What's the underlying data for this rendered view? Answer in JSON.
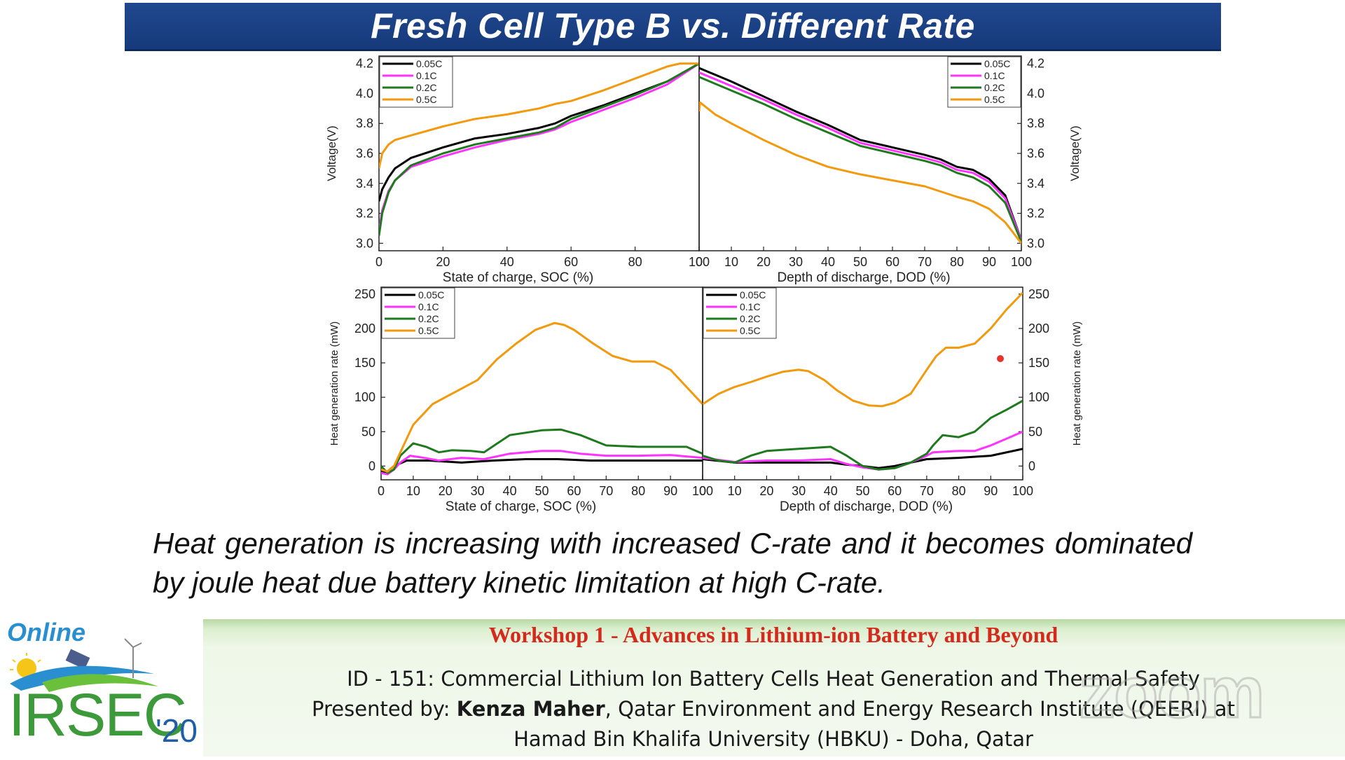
{
  "slide": {
    "title": "Fresh Cell Type B vs. Different Rate",
    "caption": "Heat  generation is increasing with increased C-rate and it becomes dominated by joule heat due battery kinetic limitation at high C-rate."
  },
  "footer": {
    "workshop": "Workshop 1 - Advances in Lithium-ion Battery and Beyond",
    "talk_id": "ID - 151: Commercial Lithium Ion Battery Cells Heat Generation and Thermal Safety",
    "presented_by_label": "Presented by: ",
    "presenter": "Kenza Maher",
    "affiliation_1": ", Qatar Environment and Energy Research Institute (QEERI) at",
    "affiliation_2": "Hamad Bin Khalifa University (HBKU) - Doha, Qatar",
    "watermark": "zoom"
  },
  "logo": {
    "online": "Online",
    "name": "IRSEC",
    "year": "'20"
  },
  "colors": {
    "title_bg": "#1b4186",
    "c005": "#000000",
    "c01": "#ff33ff",
    "c02": "#1f7a1f",
    "c05": "#f2990d",
    "workshop_red": "#d42a1d"
  },
  "chart_data": [
    {
      "type": "line",
      "panel": "charge-voltage",
      "xlabel": "State of charge, SOC (%)",
      "ylabel": "Voltage(V)",
      "xlim": [
        0,
        100
      ],
      "ylim": [
        2.95,
        4.25
      ],
      "xticks": [
        0,
        20,
        40,
        60,
        80,
        100
      ],
      "yticks": [
        3.0,
        3.2,
        3.4,
        3.6,
        3.8,
        4.0,
        4.2
      ],
      "ytick_labels": [
        "3.0",
        "3.2",
        "3.4",
        "3.6",
        "3.8",
        "4.0",
        "4.2"
      ],
      "legend": "top-left",
      "series": [
        {
          "name": "0.05C",
          "x": [
            0,
            1,
            3,
            5,
            10,
            20,
            30,
            40,
            50,
            55,
            60,
            70,
            80,
            90,
            100
          ],
          "y": [
            3.28,
            3.36,
            3.44,
            3.5,
            3.57,
            3.64,
            3.7,
            3.73,
            3.77,
            3.8,
            3.85,
            3.92,
            4.0,
            4.08,
            4.2
          ]
        },
        {
          "name": "0.1C",
          "x": [
            0,
            1,
            3,
            5,
            10,
            20,
            30,
            40,
            50,
            55,
            60,
            70,
            80,
            90,
            100
          ],
          "y": [
            3.08,
            3.22,
            3.35,
            3.42,
            3.51,
            3.58,
            3.64,
            3.69,
            3.73,
            3.76,
            3.81,
            3.89,
            3.97,
            4.06,
            4.2
          ]
        },
        {
          "name": "0.2C",
          "x": [
            0,
            1,
            3,
            5,
            10,
            20,
            30,
            40,
            50,
            55,
            60,
            70,
            80,
            90,
            100
          ],
          "y": [
            3.05,
            3.2,
            3.34,
            3.42,
            3.52,
            3.6,
            3.66,
            3.7,
            3.74,
            3.77,
            3.83,
            3.91,
            3.99,
            4.08,
            4.2
          ]
        },
        {
          "name": "0.5C",
          "x": [
            0,
            1,
            3,
            5,
            10,
            20,
            30,
            40,
            50,
            55,
            60,
            70,
            80,
            90,
            94,
            100
          ],
          "y": [
            3.5,
            3.6,
            3.66,
            3.69,
            3.72,
            3.78,
            3.83,
            3.86,
            3.9,
            3.93,
            3.95,
            4.02,
            4.1,
            4.18,
            4.2,
            4.2
          ]
        }
      ]
    },
    {
      "type": "line",
      "panel": "discharge-voltage",
      "xlabel": "Depth of discharge, DOD (%)",
      "ylabel": "Voltage(V)",
      "xlim": [
        0,
        100
      ],
      "ylim": [
        2.95,
        4.25
      ],
      "xticks": [
        0,
        10,
        20,
        30,
        40,
        50,
        60,
        70,
        80,
        90,
        100
      ],
      "yticks": [
        3.0,
        3.2,
        3.4,
        3.6,
        3.8,
        4.0,
        4.2
      ],
      "ytick_labels": [
        "3.0",
        "3.2",
        "3.4",
        "3.6",
        "3.8",
        "4.0",
        "4.2"
      ],
      "legend": "top-right",
      "series": [
        {
          "name": "0.05C",
          "x": [
            0,
            10,
            20,
            30,
            40,
            50,
            60,
            70,
            75,
            80,
            85,
            90,
            95,
            100
          ],
          "y": [
            4.17,
            4.08,
            3.98,
            3.88,
            3.79,
            3.69,
            3.64,
            3.59,
            3.56,
            3.51,
            3.49,
            3.43,
            3.32,
            3.02
          ]
        },
        {
          "name": "0.1C",
          "x": [
            0,
            10,
            20,
            30,
            40,
            50,
            60,
            70,
            75,
            80,
            85,
            90,
            95,
            100
          ],
          "y": [
            4.14,
            4.05,
            3.96,
            3.86,
            3.77,
            3.67,
            3.62,
            3.57,
            3.54,
            3.49,
            3.47,
            3.41,
            3.3,
            3.02
          ]
        },
        {
          "name": "0.2C",
          "x": [
            0,
            10,
            20,
            30,
            40,
            50,
            60,
            70,
            75,
            80,
            85,
            90,
            95,
            100
          ],
          "y": [
            4.11,
            4.02,
            3.93,
            3.83,
            3.74,
            3.65,
            3.6,
            3.55,
            3.52,
            3.47,
            3.44,
            3.38,
            3.27,
            3.01
          ]
        },
        {
          "name": "0.5C",
          "x": [
            0,
            0.3,
            5,
            10,
            20,
            30,
            40,
            50,
            60,
            70,
            80,
            85,
            90,
            95,
            100
          ],
          "y": [
            3.88,
            3.94,
            3.86,
            3.8,
            3.69,
            3.59,
            3.51,
            3.46,
            3.42,
            3.38,
            3.31,
            3.28,
            3.23,
            3.14,
            3.0
          ]
        }
      ]
    },
    {
      "type": "line",
      "panel": "charge-heat",
      "xlabel": "State of charge, SOC (%)",
      "ylabel": "Heat generation rate (mW)",
      "xlim": [
        0,
        100
      ],
      "ylim": [
        -20,
        260
      ],
      "xticks": [
        0,
        10,
        20,
        30,
        40,
        50,
        60,
        70,
        80,
        90,
        100
      ],
      "yticks": [
        0,
        50,
        100,
        150,
        200,
        250
      ],
      "legend": "top-left",
      "series": [
        {
          "name": "0.05C",
          "x": [
            0,
            1,
            2,
            4,
            8,
            15,
            25,
            35,
            45,
            55,
            65,
            75,
            85,
            95,
            100
          ],
          "y": [
            -5,
            -10,
            -8,
            0,
            8,
            8,
            5,
            8,
            10,
            10,
            8,
            8,
            8,
            8,
            8
          ]
        },
        {
          "name": "0.1C",
          "x": [
            0,
            2,
            4,
            6,
            9,
            12,
            18,
            25,
            32,
            40,
            50,
            56,
            62,
            70,
            80,
            90,
            95,
            100
          ],
          "y": [
            -10,
            -12,
            -5,
            5,
            15,
            13,
            8,
            12,
            10,
            18,
            22,
            22,
            18,
            15,
            15,
            16,
            14,
            12
          ]
        },
        {
          "name": "0.2C",
          "x": [
            0,
            2,
            4,
            6,
            10,
            14,
            18,
            22,
            28,
            32,
            40,
            50,
            56,
            62,
            70,
            80,
            90,
            95,
            100
          ],
          "y": [
            0,
            -10,
            -5,
            15,
            33,
            28,
            20,
            23,
            22,
            20,
            45,
            52,
            53,
            45,
            30,
            28,
            28,
            28,
            18
          ]
        },
        {
          "name": "0.5C",
          "x": [
            0,
            2,
            4,
            7,
            10,
            13,
            16,
            20,
            26,
            30,
            36,
            42,
            48,
            54,
            57,
            60,
            66,
            72,
            78,
            85,
            90,
            95,
            100
          ],
          "y": [
            -5,
            -8,
            0,
            30,
            60,
            75,
            90,
            100,
            115,
            125,
            155,
            178,
            198,
            208,
            205,
            198,
            178,
            160,
            152,
            152,
            140,
            115,
            90
          ]
        }
      ]
    },
    {
      "type": "line",
      "panel": "discharge-heat",
      "xlabel": "Depth of discharge, DOD (%)",
      "ylabel": "Heat generation rate (mW)",
      "xlim": [
        0,
        100
      ],
      "ylim": [
        -20,
        260
      ],
      "xticks": [
        0,
        10,
        20,
        30,
        40,
        50,
        60,
        70,
        80,
        90,
        100
      ],
      "yticks": [
        0,
        50,
        100,
        150,
        200,
        250
      ],
      "legend": "top-left",
      "series": [
        {
          "name": "0.05C",
          "x": [
            0,
            10,
            20,
            30,
            40,
            45,
            50,
            55,
            60,
            65,
            70,
            80,
            90,
            100
          ],
          "y": [
            10,
            5,
            5,
            5,
            5,
            2,
            0,
            -3,
            0,
            5,
            10,
            12,
            15,
            25
          ]
        },
        {
          "name": "0.1C",
          "x": [
            0,
            10,
            20,
            30,
            40,
            45,
            50,
            55,
            60,
            65,
            70,
            72,
            80,
            85,
            90,
            95,
            100
          ],
          "y": [
            12,
            6,
            8,
            8,
            10,
            3,
            -2,
            -5,
            -3,
            5,
            15,
            20,
            22,
            22,
            30,
            40,
            50
          ]
        },
        {
          "name": "0.2C",
          "x": [
            0,
            5,
            10,
            15,
            20,
            30,
            40,
            45,
            50,
            55,
            60,
            65,
            70,
            72,
            75,
            80,
            85,
            90,
            95,
            100
          ],
          "y": [
            15,
            8,
            5,
            15,
            22,
            25,
            28,
            15,
            0,
            -5,
            -3,
            5,
            18,
            30,
            45,
            42,
            50,
            70,
            82,
            95
          ]
        },
        {
          "name": "0.5C",
          "x": [
            0,
            5,
            10,
            15,
            20,
            25,
            30,
            33,
            38,
            42,
            47,
            52,
            56,
            60,
            65,
            70,
            73,
            76,
            80,
            85,
            90,
            95,
            100
          ],
          "y": [
            90,
            105,
            115,
            122,
            130,
            137,
            140,
            138,
            125,
            110,
            95,
            88,
            87,
            92,
            105,
            140,
            160,
            172,
            172,
            178,
            200,
            228,
            252
          ]
        }
      ]
    }
  ]
}
